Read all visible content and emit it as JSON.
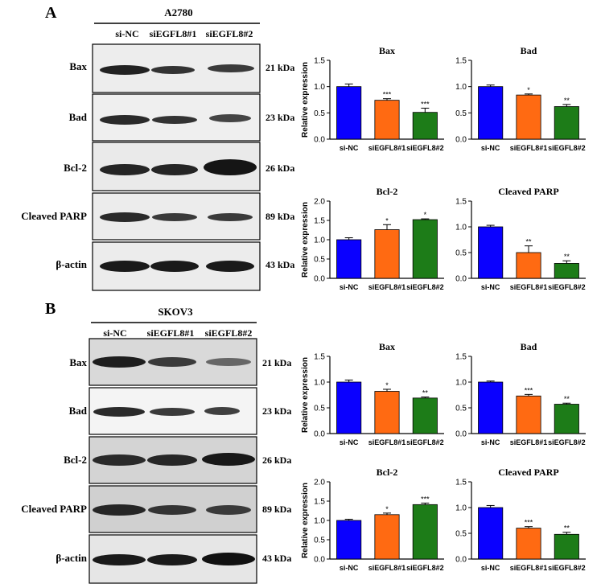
{
  "panels": [
    {
      "letter": "A",
      "cell_line": "A2780",
      "lanes": [
        "si-NC",
        "siEGFL8#1",
        "siEGFL8#2"
      ],
      "blots": [
        {
          "protein": "Bax",
          "kda": "21 kDa"
        },
        {
          "protein": "Bad",
          "kda": "23 kDa"
        },
        {
          "protein": "Bcl-2",
          "kda": "26 kDa"
        },
        {
          "protein": "Cleaved PARP",
          "kda": "89 kDa"
        },
        {
          "protein": "β-actin",
          "kda": "43 kDa"
        }
      ]
    },
    {
      "letter": "B",
      "cell_line": "SKOV3",
      "lanes": [
        "si-NC",
        "siEGFL8#1",
        "siEGFL8#2"
      ],
      "blots": [
        {
          "protein": "Bax",
          "kda": "21 kDa"
        },
        {
          "protein": "Bad",
          "kda": "23 kDa"
        },
        {
          "protein": "Bcl-2",
          "kda": "26 kDa"
        },
        {
          "protein": "Cleaved PARP",
          "kda": "89 kDa"
        },
        {
          "protein": "β-actin",
          "kda": "43 kDa"
        }
      ]
    }
  ],
  "colors": {
    "si-NC": "#0a00ff",
    "siEGFL8#1": "#ff6a12",
    "siEGFL8#2": "#1d7c18"
  },
  "chart_data": [
    {
      "type": "bar",
      "panel": "A",
      "title": "Bax",
      "ylabel": "Relative expression",
      "categories": [
        "si-NC",
        "siEGFL8#1",
        "siEGFL8#2"
      ],
      "values": [
        1.0,
        0.74,
        0.51
      ],
      "errors": [
        0.05,
        0.03,
        0.08
      ],
      "significance": [
        "",
        "***",
        "***"
      ],
      "ylim": [
        0,
        1.5
      ],
      "yticks": [
        "0.0",
        "0.5",
        "1.0",
        "1.5"
      ]
    },
    {
      "type": "bar",
      "panel": "A",
      "title": "Bad",
      "ylabel": "",
      "categories": [
        "si-NC",
        "siEGFL8#1",
        "siEGFL8#2"
      ],
      "values": [
        1.0,
        0.84,
        0.62
      ],
      "errors": [
        0.03,
        0.02,
        0.04
      ],
      "significance": [
        "",
        "*",
        "**"
      ],
      "ylim": [
        0,
        1.5
      ],
      "yticks": [
        "0.0",
        "0.5",
        "1.0",
        "1.5"
      ]
    },
    {
      "type": "bar",
      "panel": "A",
      "title": "Bcl-2",
      "ylabel": "Relative expression",
      "categories": [
        "si-NC",
        "siEGFL8#1",
        "siEGFL8#2"
      ],
      "values": [
        1.0,
        1.26,
        1.52
      ],
      "errors": [
        0.05,
        0.13,
        0.02
      ],
      "significance": [
        "",
        "*",
        "*"
      ],
      "ylim": [
        0,
        2.0
      ],
      "yticks": [
        "0.0",
        "0.5",
        "1.0",
        "1.5",
        "2.0"
      ]
    },
    {
      "type": "bar",
      "panel": "A",
      "title": "Cleaved PARP",
      "ylabel": "",
      "categories": [
        "si-NC",
        "siEGFL8#1",
        "siEGFL8#2"
      ],
      "values": [
        1.0,
        0.5,
        0.29
      ],
      "errors": [
        0.03,
        0.13,
        0.05
      ],
      "significance": [
        "",
        "**",
        "**"
      ],
      "ylim": [
        0,
        1.5
      ],
      "yticks": [
        "0.0",
        "0.5",
        "1.0",
        "1.5"
      ]
    },
    {
      "type": "bar",
      "panel": "B",
      "title": "Bax",
      "ylabel": "Relative expression",
      "categories": [
        "si-NC",
        "siEGFL8#1",
        "siEGFL8#2"
      ],
      "values": [
        1.0,
        0.82,
        0.69
      ],
      "errors": [
        0.04,
        0.04,
        0.02
      ],
      "significance": [
        "",
        "*",
        "**"
      ],
      "ylim": [
        0,
        1.5
      ],
      "yticks": [
        "0.0",
        "0.5",
        "1.0",
        "1.5"
      ]
    },
    {
      "type": "bar",
      "panel": "B",
      "title": "Bad",
      "ylabel": "",
      "categories": [
        "si-NC",
        "siEGFL8#1",
        "siEGFL8#2"
      ],
      "values": [
        1.0,
        0.73,
        0.57
      ],
      "errors": [
        0.02,
        0.03,
        0.02
      ],
      "significance": [
        "",
        "***",
        "**"
      ],
      "ylim": [
        0,
        1.5
      ],
      "yticks": [
        "0.0",
        "0.5",
        "1.0",
        "1.5"
      ]
    },
    {
      "type": "bar",
      "panel": "B",
      "title": "Bcl-2",
      "ylabel": "Relative expression",
      "categories": [
        "si-NC",
        "siEGFL8#1",
        "siEGFL8#2"
      ],
      "values": [
        1.0,
        1.15,
        1.41
      ],
      "errors": [
        0.03,
        0.04,
        0.04
      ],
      "significance": [
        "",
        "*",
        "***"
      ],
      "ylim": [
        0,
        2.0
      ],
      "yticks": [
        "0.0",
        "0.5",
        "1.0",
        "1.5",
        "2.0"
      ]
    },
    {
      "type": "bar",
      "panel": "B",
      "title": "Cleaved PARP",
      "ylabel": "",
      "categories": [
        "si-NC",
        "siEGFL8#1",
        "siEGFL8#2"
      ],
      "values": [
        1.0,
        0.6,
        0.48
      ],
      "errors": [
        0.04,
        0.03,
        0.04
      ],
      "significance": [
        "",
        "***",
        "**"
      ],
      "ylim": [
        0,
        1.5
      ],
      "yticks": [
        "0.0",
        "0.5",
        "1.0",
        "1.5"
      ]
    }
  ]
}
